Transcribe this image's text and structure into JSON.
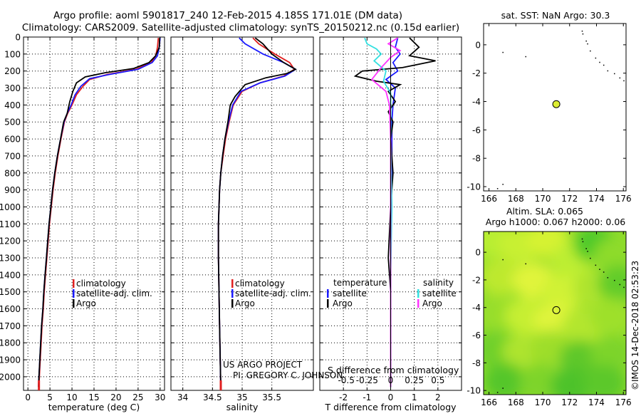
{
  "title_line1": "Argo profile: aoml 5901817_240 12-Feb-2015 4.185S 171.01E (DM data)",
  "title_line2": "Climatology: CARS2009. Satellite-adjusted climatology: synTS_20150212.nc (0.15d earlier)",
  "credit_line1": "US ARGO PROJECT",
  "credit_line2": "PI: GREGORY C. JOHNSON",
  "imos_stamp": "©IMOS 14-Dec-2018 02:53:23",
  "colors": {
    "climatology": "#e02020",
    "satellite": "#1a1aff",
    "argo": "#000000",
    "sat_salinity": "#33e0e0",
    "argo_salinity": "#ff33ff"
  },
  "chart_data": [
    {
      "id": "temperature",
      "type": "line",
      "xlabel": "temperature (deg C)",
      "ylabel": "",
      "xlim": [
        -1,
        31
      ],
      "ylim": [
        2080,
        0
      ],
      "xticks": [
        0,
        5,
        10,
        15,
        20,
        25,
        30
      ],
      "yticks": [
        0,
        100,
        200,
        300,
        400,
        500,
        600,
        700,
        800,
        900,
        1000,
        1100,
        1200,
        1300,
        1400,
        1500,
        1600,
        1700,
        1800,
        1900,
        2000
      ],
      "legend": [
        "climatology",
        "satellite-adj. clim.",
        "Argo"
      ],
      "series": [
        {
          "name": "climatology",
          "color": "#e02020",
          "points": [
            [
              29.6,
              5
            ],
            [
              29.4,
              60
            ],
            [
              29.0,
              110
            ],
            [
              28.0,
              150
            ],
            [
              24.5,
              190
            ],
            [
              18.0,
              220
            ],
            [
              14.0,
              250
            ],
            [
              12.5,
              290
            ],
            [
              11.0,
              340
            ],
            [
              10.0,
              400
            ],
            [
              9.0,
              450
            ],
            [
              8.3,
              500
            ],
            [
              7.5,
              600
            ],
            [
              6.8,
              700
            ],
            [
              6.2,
              800
            ],
            [
              5.7,
              900
            ],
            [
              5.3,
              1000
            ],
            [
              4.9,
              1100
            ],
            [
              4.6,
              1200
            ],
            [
              4.3,
              1300
            ],
            [
              4.0,
              1400
            ],
            [
              3.7,
              1500
            ],
            [
              3.5,
              1600
            ],
            [
              3.2,
              1700
            ],
            [
              3.0,
              1800
            ],
            [
              2.8,
              1900
            ],
            [
              2.6,
              2000
            ],
            [
              2.5,
              2060
            ]
          ]
        },
        {
          "name": "satellite-adj. clim.",
          "color": "#1a1aff",
          "points": [
            [
              30.0,
              5
            ],
            [
              29.8,
              60
            ],
            [
              29.4,
              110
            ],
            [
              28.2,
              150
            ],
            [
              25.0,
              190
            ],
            [
              18.5,
              220
            ],
            [
              14.0,
              245
            ],
            [
              12.0,
              290
            ],
            [
              10.7,
              340
            ],
            [
              9.8,
              400
            ],
            [
              8.9,
              450
            ],
            [
              8.2,
              500
            ],
            [
              7.4,
              600
            ],
            [
              6.7,
              700
            ],
            [
              6.1,
              800
            ],
            [
              5.6,
              900
            ],
            [
              5.2,
              1000
            ],
            [
              4.8,
              1100
            ],
            [
              4.5,
              1200
            ],
            [
              4.2,
              1300
            ],
            [
              3.9,
              1400
            ],
            [
              3.6,
              1500
            ],
            [
              3.4,
              1600
            ],
            [
              3.1,
              1700
            ],
            [
              2.9,
              1800
            ],
            [
              2.7,
              1900
            ],
            [
              2.5,
              2000
            ],
            [
              2.4,
              2060
            ]
          ]
        },
        {
          "name": "Argo",
          "color": "#000000",
          "points": [
            [
              29.9,
              5
            ],
            [
              29.8,
              60
            ],
            [
              29.0,
              110
            ],
            [
              27.5,
              150
            ],
            [
              24.0,
              185
            ],
            [
              17.5,
              210
            ],
            [
              13.0,
              235
            ],
            [
              11.0,
              270
            ],
            [
              10.2,
              320
            ],
            [
              9.5,
              380
            ],
            [
              8.9,
              450
            ],
            [
              8.1,
              500
            ],
            [
              7.4,
              600
            ],
            [
              6.7,
              700
            ],
            [
              6.1,
              800
            ],
            [
              5.6,
              900
            ],
            [
              5.2,
              1000
            ],
            [
              4.8,
              1100
            ],
            [
              4.5,
              1200
            ],
            [
              4.2,
              1300
            ],
            [
              3.9,
              1400
            ],
            [
              3.6,
              1500
            ],
            [
              3.4,
              1600
            ],
            [
              3.1,
              1700
            ],
            [
              2.9,
              1800
            ],
            [
              2.7,
              1900
            ],
            [
              2.5,
              2000
            ],
            [
              2.4,
              2060
            ]
          ]
        }
      ]
    },
    {
      "id": "salinity",
      "type": "line",
      "xlabel": "salinity",
      "xlim": [
        33.8,
        36.2
      ],
      "ylim": [
        2080,
        0
      ],
      "xticks": [
        34,
        34.5,
        35,
        35.5
      ],
      "xticklabels": [
        "34",
        "34.5",
        "35",
        "35.5"
      ],
      "legend": [
        "climatology",
        "satellite-adj. clim.",
        "Argo"
      ],
      "series": [
        {
          "name": "climatology",
          "color": "#e02020",
          "points": [
            [
              35.18,
              5
            ],
            [
              35.28,
              40
            ],
            [
              35.55,
              100
            ],
            [
              35.8,
              150
            ],
            [
              35.88,
              190
            ],
            [
              35.7,
              230
            ],
            [
              35.3,
              270
            ],
            [
              35.0,
              320
            ],
            [
              34.85,
              400
            ],
            [
              34.78,
              500
            ],
            [
              34.72,
              600
            ],
            [
              34.68,
              700
            ],
            [
              34.64,
              800
            ],
            [
              34.62,
              900
            ],
            [
              34.61,
              1000
            ],
            [
              34.6,
              1100
            ],
            [
              34.6,
              1300
            ],
            [
              34.61,
              1500
            ],
            [
              34.62,
              1700
            ],
            [
              34.63,
              1900
            ],
            [
              34.64,
              2060
            ]
          ]
        },
        {
          "name": "satellite-adj. clim.",
          "color": "#1a1aff",
          "points": [
            [
              34.95,
              5
            ],
            [
              35.05,
              40
            ],
            [
              35.35,
              100
            ],
            [
              35.7,
              150
            ],
            [
              35.9,
              190
            ],
            [
              35.72,
              230
            ],
            [
              35.3,
              270
            ],
            [
              34.98,
              320
            ],
            [
              34.84,
              400
            ],
            [
              34.77,
              500
            ],
            [
              34.71,
              600
            ],
            [
              34.67,
              700
            ],
            [
              34.64,
              800
            ],
            [
              34.62,
              900
            ],
            [
              34.61,
              1000
            ],
            [
              34.6,
              1100
            ],
            [
              34.6,
              1300
            ],
            [
              34.61,
              1500
            ],
            [
              34.62,
              1700
            ],
            [
              34.63,
              1900
            ],
            [
              34.64,
              2060
            ]
          ]
        },
        {
          "name": "Argo",
          "color": "#000000",
          "points": [
            [
              35.22,
              5
            ],
            [
              35.35,
              40
            ],
            [
              35.5,
              100
            ],
            [
              35.7,
              150
            ],
            [
              35.9,
              190
            ],
            [
              35.75,
              215
            ],
            [
              35.4,
              240
            ],
            [
              35.05,
              280
            ],
            [
              34.88,
              350
            ],
            [
              34.8,
              400
            ],
            [
              34.76,
              500
            ],
            [
              34.71,
              600
            ],
            [
              34.67,
              700
            ],
            [
              34.64,
              800
            ],
            [
              34.62,
              900
            ],
            [
              34.61,
              1000
            ],
            [
              34.6,
              1100
            ],
            [
              34.6,
              1300
            ],
            [
              34.61,
              1500
            ],
            [
              34.62,
              1700
            ],
            [
              34.63,
              1900
            ],
            [
              34.64,
              2060
            ]
          ]
        }
      ]
    },
    {
      "id": "difference",
      "type": "line",
      "xlabel": "T difference from climatology",
      "xlabel2": "S difference from climatology",
      "xlim": [
        -3.0,
        3.0
      ],
      "ylim": [
        2080,
        0
      ],
      "xticks": [
        -2,
        -1,
        0,
        1,
        2
      ],
      "xticks2": [
        "-0.5",
        "-0.25",
        "0",
        "0.25",
        "0.5"
      ],
      "legend_left_title": "temperature",
      "legend_right_title": "salinity",
      "legend_left": [
        "satellite",
        "Argo"
      ],
      "legend_right": [
        "satellite",
        "Argo"
      ],
      "series": [
        {
          "name": "T satellite",
          "color": "#1a1aff",
          "points": [
            [
              0.3,
              5
            ],
            [
              0.2,
              60
            ],
            [
              0.4,
              100
            ],
            [
              0.1,
              150
            ],
            [
              0.3,
              200
            ],
            [
              -0.2,
              250
            ],
            [
              0.2,
              300
            ],
            [
              0.1,
              400
            ],
            [
              0.05,
              500
            ],
            [
              0.05,
              800
            ],
            [
              0.0,
              1200
            ],
            [
              0.0,
              1600
            ],
            [
              0.0,
              2060
            ]
          ]
        },
        {
          "name": "T Argo",
          "color": "#000000",
          "points": [
            [
              0.8,
              5
            ],
            [
              1.2,
              60
            ],
            [
              0.8,
              110
            ],
            [
              1.9,
              140
            ],
            [
              0.5,
              180
            ],
            [
              -1.2,
              200
            ],
            [
              -1.5,
              230
            ],
            [
              -0.6,
              260
            ],
            [
              0.4,
              280
            ],
            [
              -0.1,
              320
            ],
            [
              0.2,
              380
            ],
            [
              -0.1,
              440
            ],
            [
              0.1,
              500
            ],
            [
              0.0,
              600
            ],
            [
              0.1,
              800
            ],
            [
              0.0,
              1000
            ],
            [
              -0.1,
              1300
            ],
            [
              0.0,
              1500
            ],
            [
              0.0,
              1800
            ],
            [
              0.0,
              2060
            ]
          ]
        },
        {
          "name": "S satellite",
          "color": "#33e0e0",
          "points": [
            [
              -1.1,
              5
            ],
            [
              -1.0,
              40
            ],
            [
              -0.6,
              70
            ],
            [
              -0.4,
              100
            ],
            [
              -0.7,
              140
            ],
            [
              -0.2,
              200
            ],
            [
              -0.3,
              260
            ],
            [
              0.0,
              330
            ],
            [
              0.0,
              600
            ],
            [
              0.05,
              1000
            ],
            [
              0.0,
              1400
            ],
            [
              0.0,
              2060
            ]
          ]
        },
        {
          "name": "S Argo",
          "color": "#ff33ff",
          "points": [
            [
              0.3,
              5
            ],
            [
              -0.1,
              40
            ],
            [
              0.4,
              80
            ],
            [
              0.0,
              120
            ],
            [
              -0.4,
              180
            ],
            [
              -0.8,
              250
            ],
            [
              -0.2,
              320
            ],
            [
              -0.05,
              400
            ],
            [
              0.0,
              600
            ],
            [
              0.0,
              1000
            ],
            [
              0.0,
              1500
            ],
            [
              0.0,
              2060
            ]
          ]
        }
      ]
    },
    {
      "id": "sst_map",
      "type": "scatter",
      "title": "sat. SST: NaN Argo: 30.3",
      "xlim": [
        165.6,
        176.2
      ],
      "ylim": [
        -10.3,
        1.5
      ],
      "xticks": [
        166,
        168,
        170,
        172,
        174,
        176
      ],
      "yticks": [
        0,
        -2,
        -4,
        -6,
        -8,
        -10
      ],
      "float_position": [
        171.01,
        -4.185
      ],
      "float_color": "#ddee33"
    },
    {
      "id": "sla_map",
      "type": "heatmap",
      "title_line1": "Altim. SLA: 0.065",
      "title_line2": "Argo h1000: 0.067 h2000: 0.06",
      "xlim": [
        165.6,
        176.2
      ],
      "ylim": [
        -10.3,
        1.5
      ],
      "xticks": [
        166,
        168,
        170,
        172,
        174,
        176
      ],
      "yticks": [
        0,
        -2,
        -4,
        -6,
        -8,
        -10
      ],
      "float_position": [
        171.01,
        -4.185
      ]
    }
  ]
}
